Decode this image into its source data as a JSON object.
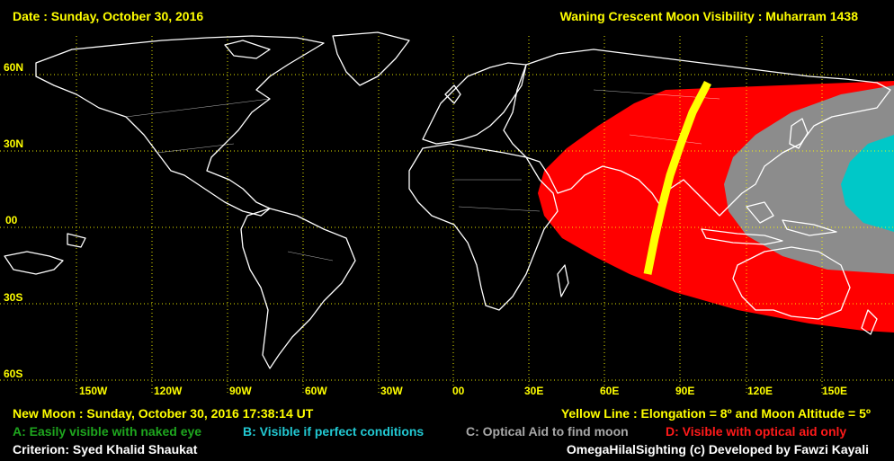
{
  "header": {
    "date": "Date : Sunday, October 30, 2016",
    "title": "Waning Crescent Moon Visibility : Muharram 1438"
  },
  "lat_labels": [
    "60N",
    "30N",
    "00",
    "30S",
    "60S"
  ],
  "lon_labels": [
    "150W",
    "120W",
    "90W",
    "60W",
    "30W",
    "00",
    "30E",
    "60E",
    "90E",
    "120E",
    "150E"
  ],
  "footer": {
    "new_moon": "New Moon : Sunday, October 30, 2016  17:38:14  UT",
    "yellow_line": "Yellow Line : Elongation = 8º  and Moon Altitude = 5º",
    "legend_a": "A: Easily visible with naked eye",
    "legend_b": "B: Visible if perfect conditions",
    "legend_c": "C: Optical Aid to find moon",
    "legend_d": "D: Visible with optical aid only",
    "criterion": "Criterion: Syed Khalid Shaukat",
    "credit": "OmegaHilalSighting  (c)  Developed by Fawzi Kayali"
  },
  "colors": {
    "zone_a": "#1ea61e",
    "zone_b": "#00c8c8",
    "zone_c": "#8c8c8c",
    "zone_d": "#ff0000",
    "yellow_line": "#ffff00",
    "grid": "#ffff00",
    "coast": "#ffffff"
  }
}
